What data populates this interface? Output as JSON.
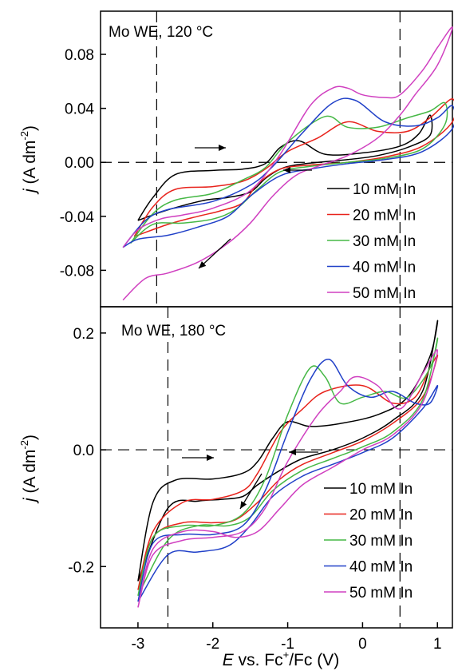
{
  "chart_data": [
    {
      "type": "line",
      "title": "Mo WE, 120 °C",
      "xlabel": "E vs. Fc+/Fc (V)",
      "ylabel": "j (A dm-2)",
      "xlim": [
        -3.5,
        1.2
      ],
      "ylim": [
        -0.107,
        0.112
      ],
      "yticks": [
        0.08,
        0.04,
        0.0,
        -0.04,
        -0.08
      ],
      "ytick_labels": [
        "0.08",
        "0.04",
        "0.00",
        "-0.04",
        "-0.08"
      ],
      "reference_lines": {
        "vertical": [
          -2.75,
          0.5
        ],
        "horizontal": [
          0.0
        ]
      },
      "legend_position": "right",
      "series": [
        {
          "name": "10 mM In",
          "color": "#000000",
          "x": [
            -3.0,
            -2.8,
            -2.5,
            -2.0,
            -1.6,
            -1.3,
            -1.1,
            -0.85,
            -0.5,
            0.0,
            0.5,
            0.75,
            0.9,
            0.9,
            0.6,
            0.2,
            -0.2,
            -0.6,
            -0.9,
            -1.1,
            -1.3,
            -1.5,
            -1.8,
            -2.1,
            -2.4,
            -2.7,
            -3.0
          ],
          "y": [
            -0.043,
            -0.026,
            -0.009,
            -0.006,
            -0.005,
            -0.001,
            0.011,
            0.016,
            0.006,
            0.007,
            0.012,
            0.021,
            0.035,
            0.02,
            0.011,
            0.005,
            0.002,
            0.0,
            -0.002,
            -0.005,
            -0.012,
            -0.022,
            -0.026,
            -0.028,
            -0.032,
            -0.037,
            -0.043
          ]
        },
        {
          "name": "20 mM In",
          "color": "#e8231c",
          "x": [
            -3.05,
            -2.8,
            -2.5,
            -2.0,
            -1.6,
            -1.3,
            -1.0,
            -0.6,
            -0.2,
            0.2,
            0.6,
            0.9,
            1.2,
            1.2,
            0.8,
            0.3,
            -0.2,
            -0.7,
            -1.1,
            -1.4,
            -1.6,
            -1.9,
            -2.2,
            -2.6,
            -3.05
          ],
          "y": [
            -0.055,
            -0.033,
            -0.02,
            -0.018,
            -0.014,
            -0.005,
            0.008,
            0.018,
            0.03,
            0.023,
            0.023,
            0.033,
            0.047,
            0.03,
            0.012,
            0.004,
            0.0,
            -0.002,
            -0.005,
            -0.016,
            -0.03,
            -0.036,
            -0.04,
            -0.046,
            -0.055
          ]
        },
        {
          "name": "30 mM In",
          "color": "#46b846",
          "x": [
            -3.1,
            -2.8,
            -2.5,
            -2.0,
            -1.6,
            -1.3,
            -1.0,
            -0.5,
            -0.2,
            0.2,
            0.6,
            0.9,
            1.1,
            1.1,
            0.8,
            0.3,
            -0.2,
            -0.7,
            -1.1,
            -1.4,
            -1.7,
            -2.0,
            -2.4,
            -2.8,
            -3.1
          ],
          "y": [
            -0.06,
            -0.038,
            -0.028,
            -0.023,
            -0.013,
            -0.004,
            0.015,
            0.034,
            0.026,
            0.026,
            0.033,
            0.038,
            0.044,
            0.028,
            0.01,
            0.003,
            0.0,
            -0.003,
            -0.007,
            -0.02,
            -0.035,
            -0.042,
            -0.045,
            -0.046,
            -0.06
          ]
        },
        {
          "name": "40 mM In",
          "color": "#2040c8",
          "x": [
            -3.2,
            -2.9,
            -2.6,
            -2.0,
            -1.5,
            -1.2,
            -0.8,
            -0.4,
            -0.1,
            0.3,
            0.7,
            1.0,
            1.2,
            1.2,
            0.8,
            0.3,
            -0.2,
            -0.7,
            -1.1,
            -1.5,
            -1.8,
            -2.2,
            -2.6,
            -3.0,
            -3.2
          ],
          "y": [
            -0.063,
            -0.043,
            -0.035,
            -0.029,
            -0.017,
            -0.003,
            0.022,
            0.044,
            0.046,
            0.03,
            0.027,
            0.033,
            0.042,
            0.025,
            0.008,
            0.002,
            -0.001,
            -0.005,
            -0.01,
            -0.025,
            -0.04,
            -0.048,
            -0.054,
            -0.057,
            -0.063
          ]
        },
        {
          "name": "50 mM In",
          "color": "#d040c0",
          "x": [
            -3.2,
            -3.0,
            -2.7,
            -2.4,
            -2.0,
            -1.5,
            -1.1,
            -0.7,
            -0.4,
            -0.2,
            0.0,
            0.3,
            0.5,
            0.8,
            1.0,
            1.2,
            1.0,
            0.7,
            0.5,
            0.2,
            -0.2,
            -0.6,
            -0.9,
            -1.2,
            -1.5,
            -1.8,
            -2.2,
            -2.6,
            -2.9,
            -3.2
          ],
          "y": [
            -0.063,
            -0.05,
            -0.042,
            -0.039,
            -0.034,
            -0.021,
            0.006,
            0.042,
            0.055,
            0.055,
            0.05,
            0.048,
            0.05,
            0.068,
            0.085,
            0.1,
            0.072,
            0.05,
            0.035,
            0.018,
            0.005,
            -0.003,
            -0.01,
            -0.025,
            -0.045,
            -0.06,
            -0.074,
            -0.082,
            -0.086,
            -0.102
          ]
        }
      ]
    },
    {
      "type": "line",
      "title": "Mo WE, 180 °C",
      "xlabel": "E vs. Fc+/Fc (V)",
      "ylabel": "j (A dm-2)",
      "xlim": [
        -3.5,
        1.2
      ],
      "ylim": [
        -0.305,
        0.245
      ],
      "xticks": [
        -3,
        -2,
        -1,
        0,
        1
      ],
      "xtick_labels": [
        "-3",
        "-2",
        "-1",
        "0",
        "1"
      ],
      "yticks": [
        0.2,
        0.0,
        -0.2
      ],
      "ytick_labels": [
        "0.2",
        "0.0",
        "-0.2"
      ],
      "reference_lines": {
        "vertical": [
          -2.6,
          0.5
        ],
        "horizontal": [
          0.0
        ]
      },
      "legend_position": "right",
      "series": [
        {
          "name": "10 mM In",
          "color": "#000000",
          "x": [
            -3.0,
            -2.8,
            -2.5,
            -2.0,
            -1.6,
            -1.4,
            -1.2,
            -1.0,
            -0.7,
            -0.3,
            0.2,
            0.6,
            0.9,
            1.0,
            0.8,
            0.4,
            0.0,
            -0.4,
            -0.8,
            -1.1,
            -1.4,
            -1.6,
            -1.9,
            -2.2,
            -2.6,
            -3.0
          ],
          "y": [
            -0.225,
            -0.09,
            -0.052,
            -0.05,
            -0.04,
            -0.02,
            0.02,
            0.048,
            0.04,
            0.045,
            0.06,
            0.09,
            0.16,
            0.22,
            0.1,
            0.05,
            0.02,
            0.0,
            -0.015,
            -0.035,
            -0.06,
            -0.08,
            -0.085,
            -0.088,
            -0.1,
            -0.225
          ]
        },
        {
          "name": "20 mM In",
          "color": "#e8231c",
          "x": [
            -3.0,
            -2.8,
            -2.4,
            -2.0,
            -1.6,
            -1.4,
            -1.1,
            -0.8,
            -0.5,
            0.0,
            0.4,
            0.7,
            0.9,
            1.0,
            0.8,
            0.4,
            0.0,
            -0.4,
            -0.8,
            -1.1,
            -1.4,
            -1.7,
            -2.0,
            -2.4,
            -2.8,
            -3.0
          ],
          "y": [
            -0.24,
            -0.14,
            -0.09,
            -0.085,
            -0.07,
            -0.04,
            0.03,
            0.07,
            0.1,
            0.11,
            0.08,
            0.09,
            0.14,
            0.16,
            0.09,
            0.045,
            0.015,
            -0.005,
            -0.025,
            -0.05,
            -0.09,
            -0.12,
            -0.125,
            -0.125,
            -0.15,
            -0.24
          ]
        },
        {
          "name": "30 mM In",
          "color": "#46b846",
          "x": [
            -3.0,
            -2.8,
            -2.4,
            -2.0,
            -1.6,
            -1.3,
            -1.0,
            -0.7,
            -0.5,
            -0.3,
            0.0,
            0.3,
            0.6,
            0.9,
            1.0,
            0.8,
            0.4,
            0.0,
            -0.4,
            -0.8,
            -1.2,
            -1.5,
            -1.8,
            -2.2,
            -2.6,
            -3.0
          ],
          "y": [
            -0.25,
            -0.15,
            -0.13,
            -0.13,
            -0.11,
            -0.05,
            0.06,
            0.14,
            0.125,
            0.08,
            0.09,
            0.1,
            0.09,
            0.14,
            0.19,
            0.085,
            0.03,
            0.005,
            -0.015,
            -0.035,
            -0.07,
            -0.115,
            -0.13,
            -0.13,
            -0.155,
            -0.25
          ]
        },
        {
          "name": "40 mM In",
          "color": "#2040c8",
          "x": [
            -3.0,
            -2.8,
            -2.4,
            -2.0,
            -1.6,
            -1.3,
            -1.0,
            -0.7,
            -0.45,
            -0.2,
            0.1,
            0.4,
            0.7,
            0.9,
            1.0,
            0.8,
            0.4,
            0.0,
            -0.4,
            -0.8,
            -1.2,
            -1.5,
            -1.8,
            -2.2,
            -2.6,
            -3.0
          ],
          "y": [
            -0.26,
            -0.16,
            -0.145,
            -0.145,
            -0.13,
            -0.07,
            0.03,
            0.12,
            0.155,
            0.11,
            0.09,
            0.1,
            0.08,
            0.08,
            0.11,
            0.07,
            0.02,
            -0.005,
            -0.025,
            -0.045,
            -0.08,
            -0.13,
            -0.165,
            -0.175,
            -0.18,
            -0.26
          ]
        },
        {
          "name": "50 mM In",
          "color": "#d040c0",
          "x": [
            -3.0,
            -2.8,
            -2.4,
            -2.0,
            -1.6,
            -1.3,
            -1.0,
            -0.6,
            -0.3,
            -0.1,
            0.2,
            0.5,
            0.8,
            1.0,
            0.8,
            0.4,
            0.0,
            -0.4,
            -0.8,
            -1.1,
            -1.4,
            -1.7,
            -2.0,
            -2.4,
            -2.8,
            -3.0
          ],
          "y": [
            -0.27,
            -0.18,
            -0.155,
            -0.15,
            -0.14,
            -0.1,
            -0.02,
            0.06,
            0.1,
            0.125,
            0.11,
            0.07,
            0.13,
            0.17,
            0.08,
            0.025,
            0.0,
            -0.03,
            -0.06,
            -0.1,
            -0.14,
            -0.15,
            -0.14,
            -0.14,
            -0.17,
            -0.27
          ]
        }
      ]
    }
  ]
}
